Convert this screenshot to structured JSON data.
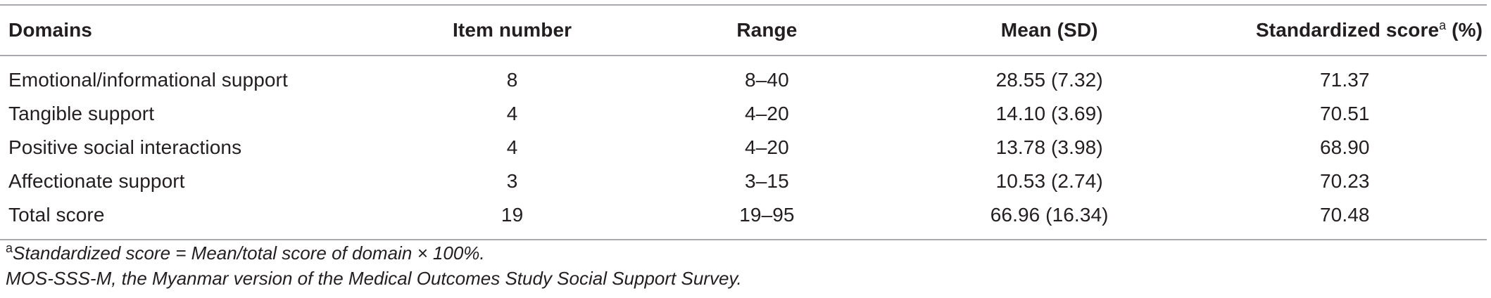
{
  "table": {
    "headers": {
      "domains": "Domains",
      "item_number": "Item number",
      "range": "Range",
      "mean_sd": "Mean (SD)",
      "standardized_label": "Standardized score",
      "standardized_sup": "a",
      "standardized_unit": " (%)"
    },
    "rows": [
      {
        "domain": "Emotional/informational support",
        "items": "8",
        "range": "8–40",
        "mean_sd": "28.55 (7.32)",
        "standardized": "71.37"
      },
      {
        "domain": "Tangible support",
        "items": "4",
        "range": "4–20",
        "mean_sd": "14.10 (3.69)",
        "standardized": "70.51"
      },
      {
        "domain": "Positive social interactions",
        "items": "4",
        "range": "4–20",
        "mean_sd": "13.78 (3.98)",
        "standardized": "68.90"
      },
      {
        "domain": "Affectionate support",
        "items": "3",
        "range": "3–15",
        "mean_sd": "10.53 (2.74)",
        "standardized": "70.23"
      },
      {
        "domain": "Total score",
        "items": "19",
        "range": "19–95",
        "mean_sd": "66.96 (16.34)",
        "standardized": "70.48"
      }
    ]
  },
  "notes": {
    "footnote_sup": "a",
    "footnote_text": "Standardized score = Mean/total score of domain × 100%.",
    "abbreviation": "MOS-SSS-M, the Myanmar version of the Medical Outcomes Study Social Support Survey."
  },
  "colors": {
    "rule": "#a7a9ac",
    "text": "#231f20"
  }
}
